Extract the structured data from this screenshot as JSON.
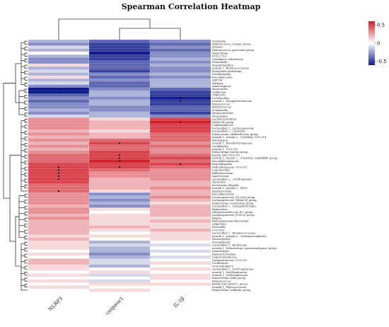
{
  "chart_data": {
    "type": "heatmap",
    "title": "Spearman Correlation Heatmap",
    "columns": [
      "NLRP3",
      "caspase1",
      "IL-1β"
    ],
    "colorbar": {
      "range": [
        -0.6,
        0.6
      ],
      "ticks": [
        {
          "label": "0.5",
          "value": 0.5
        },
        {
          "label": "0",
          "value": 0
        },
        {
          "label": "-0.5",
          "value": -0.5
        }
      ],
      "colors": {
        "low": "#0d1b8c",
        "mid": "#ffffff",
        "high": "#d11f2a"
      }
    },
    "rows": [
      {
        "name": "Tuzzerella",
        "values": [
          -0.2,
          -0.4,
          -0.3
        ]
      },
      {
        "name": "Ruminococcus_torques_group",
        "values": [
          -0.3,
          -0.5,
          -0.4
        ]
      },
      {
        "name": "HT1009",
        "values": [
          -0.1,
          -0.5,
          -0.3
        ]
      },
      {
        "name": "Ruminococcus_gauvreaui_group",
        "values": [
          -0.2,
          -0.5,
          -0.4
        ]
      },
      {
        "name": "Anaerofilum",
        "values": [
          0.0,
          -0.6,
          -0.3
        ]
      },
      {
        "name": "UCS-2-7L3",
        "values": [
          -0.2,
          -0.5,
          -0.3
        ]
      },
      {
        "name": "Candidatus_Soleaferrea",
        "values": [
          -0.3,
          -0.5,
          -0.2
        ]
      },
      {
        "name": "Monoflaoler",
        "values": [
          -0.3,
          -0.4,
          -0.3
        ]
      },
      {
        "name": "Negativibacillus",
        "values": [
          0.1,
          -0.4,
          -0.2
        ]
      },
      {
        "name": "norank_f__Ruminococcaceae",
        "values": [
          -0.2,
          -0.4,
          -0.3
        ]
      },
      {
        "name": "Erysipelatoclostridium",
        "values": [
          -0.1,
          -0.5,
          -0.3
        ]
      },
      {
        "name": "Eisenbergiella",
        "values": [
          -0.2,
          -0.3,
          -0.2
        ]
      },
      {
        "name": "Faecalibaculum",
        "values": [
          0.1,
          -0.4,
          -0.3
        ]
      },
      {
        "name": "ASF356",
        "values": [
          -0.2,
          -0.3,
          -0.2
        ]
      },
      {
        "name": "Alistipes",
        "values": [
          -0.1,
          -0.4,
          -0.2
        ]
      },
      {
        "name": "Anaerotignum",
        "values": [
          -0.3,
          -0.4,
          -0.2
        ]
      },
      {
        "name": "Bacteroides",
        "values": [
          -0.6,
          -0.3,
          -0.4
        ]
      },
      {
        "name": "Sellimonas",
        "values": [
          -0.6,
          -0.2,
          -0.5
        ]
      },
      {
        "name": "CHKCI002",
        "values": [
          -0.4,
          -0.2,
          -0.5
        ]
      },
      {
        "name": "Lactobacillus",
        "values": [
          -0.3,
          -0.3,
          -0.6
        ]
      },
      {
        "name": "norank_f__Erysipelotrichaceae",
        "values": [
          -0.4,
          -0.2,
          -0.5
        ]
      },
      {
        "name": "Enterococcus",
        "values": [
          -0.3,
          -0.2,
          -0.5
        ]
      },
      {
        "name": "Butyricicoccus",
        "values": [
          -0.3,
          -0.3,
          -0.4
        ]
      },
      {
        "name": "Fournierella",
        "values": [
          -0.2,
          -0.3,
          -0.4
        ]
      },
      {
        "name": "Parabacteroides",
        "values": [
          -0.3,
          -0.2,
          -0.5
        ]
      },
      {
        "name": "Monoglobus",
        "values": [
          -0.1,
          -0.2,
          -0.3
        ]
      },
      {
        "name": "Lachnoclostridium",
        "values": [
          0.3,
          0.1,
          0.5
        ]
      },
      {
        "name": "NK4A214_group",
        "values": [
          0.3,
          0.2,
          0.6
        ]
      },
      {
        "name": "Colidextribacter",
        "values": [
          0.3,
          0.2,
          0.5
        ]
      },
      {
        "name": "unclassified_f__Lachnospiraceae",
        "values": [
          0.3,
          0.2,
          0.5
        ]
      },
      {
        "name": "unclassified_c__Clostridia",
        "values": [
          0.2,
          0.1,
          0.5
        ]
      },
      {
        "name": "Eubacterium_oxidoreducens_group",
        "values": [
          0.3,
          0.2,
          0.4
        ]
      },
      {
        "name": "norank_f__norank_o__Clostridia_UCG-014",
        "values": [
          0.2,
          0.2,
          0.4
        ]
      },
      {
        "name": "Holdemania",
        "values": [
          0.3,
          0.4,
          0.4
        ]
      },
      {
        "name": "norank_f__Desulfovibrionaceae",
        "values": [
          0.2,
          0.5,
          0.3
        ]
      },
      {
        "name": "Oscillibacter",
        "values": [
          0.3,
          0.4,
          0.4
        ]
      },
      {
        "name": "norank_f__UCG-010",
        "values": [
          0.2,
          0.4,
          0.3
        ]
      },
      {
        "name": "Eubacterium_brachy_group",
        "values": [
          0.3,
          0.5,
          0.3
        ]
      },
      {
        "name": "Family_XIII_UCG-001",
        "values": [
          0.4,
          0.5,
          0.4
        ]
      },
      {
        "name": "norank_f__norank_o__Clostridia_vadinBB60_group",
        "values": [
          0.4,
          0.5,
          0.5
        ]
      },
      {
        "name": "Pseudoflavonifractor",
        "values": [
          0.4,
          0.6,
          0.4
        ]
      },
      {
        "name": "Marvinbryantia",
        "values": [
          0.5,
          0.5,
          0.5
        ]
      },
      {
        "name": "Defluviitaleaceae_UCG-011",
        "values": [
          0.5,
          0.5,
          0.4
        ]
      },
      {
        "name": "Coprobacillus",
        "values": [
          0.5,
          0.4,
          0.3
        ]
      },
      {
        "name": "Bifidobacterium",
        "values": [
          0.5,
          0.3,
          0.3
        ]
      },
      {
        "name": "Anaerovorax",
        "values": [
          0.5,
          0.3,
          0.3
        ]
      },
      {
        "name": "unclassified_o__Oscillospirales",
        "values": [
          0.5,
          0.2,
          0.3
        ]
      },
      {
        "name": "Tyzzerella",
        "values": [
          0.5,
          0.2,
          0.2
        ]
      },
      {
        "name": "Escherichia-Shigella",
        "values": [
          0.4,
          0.2,
          0.2
        ]
      },
      {
        "name": "norank_f__norank_o__RF39",
        "values": [
          0.4,
          0.2,
          0.3
        ]
      },
      {
        "name": "Shuttleworthia",
        "values": [
          0.4,
          0.1,
          0.2
        ]
      },
      {
        "name": "Faecalibacterium",
        "values": [
          0.3,
          -0.3,
          0.2
        ]
      },
      {
        "name": "Lachnospiraceae_NC2004_group",
        "values": [
          0.3,
          -0.2,
          0.3
        ]
      },
      {
        "name": "Lachnospiraceae_NK4A136_group",
        "values": [
          0.3,
          -0.3,
          0.2
        ]
      },
      {
        "name": "Eubacterium_ventriosum_group",
        "values": [
          0.3,
          -0.2,
          0.1
        ]
      },
      {
        "name": "unclassified_o__Erysipelotrichales",
        "values": [
          0.2,
          -0.3,
          0.2
        ]
      },
      {
        "name": "Romboutsia",
        "values": [
          0.3,
          0.1,
          0.2
        ]
      },
      {
        "name": "Christensenellaceae_R-7_group",
        "values": [
          0.3,
          0.0,
          0.2
        ]
      },
      {
        "name": "Lachnospiraceae_FCS020_group",
        "values": [
          0.2,
          0.1,
          0.2
        ]
      },
      {
        "name": "Blautia",
        "values": [
          0.3,
          0.1,
          0.1
        ]
      },
      {
        "name": "Hydrogenoanaerobacterium",
        "values": [
          0.2,
          0.1,
          0.2
        ]
      },
      {
        "name": "CHKCI001",
        "values": [
          0.2,
          0.1,
          0.1
        ]
      },
      {
        "name": "Prevotella",
        "values": [
          0.2,
          0.2,
          0.1
        ]
      },
      {
        "name": "UCG-005",
        "values": [
          0.2,
          0.1,
          0.2
        ]
      },
      {
        "name": "unclassified_f__Ruminococcaceae",
        "values": [
          0.2,
          0.0,
          0.1
        ]
      },
      {
        "name": "norank_f__norank_o__Gastranaerophilales",
        "values": [
          0.1,
          0.1,
          0.1
        ]
      },
      {
        "name": "Parasutterella",
        "values": [
          0.2,
          0.0,
          0.1
        ]
      },
      {
        "name": "Flavonifractor",
        "values": [
          0.1,
          -0.2,
          0.0
        ]
      },
      {
        "name": "unclassified_f__Bacillaceae",
        "values": [
          0.1,
          -0.1,
          -0.1
        ]
      },
      {
        "name": "norank_f__Eubacterium_coprostanoligenes_group",
        "values": [
          0.1,
          -0.2,
          0.0
        ]
      },
      {
        "name": "Anaerostipes",
        "values": [
          0.0,
          -0.2,
          -0.1
        ]
      },
      {
        "name": "Ruminiclostridium",
        "values": [
          0.1,
          -0.3,
          0.0
        ]
      },
      {
        "name": "Caproiciproducens",
        "values": [
          0.0,
          -0.2,
          -0.1
        ]
      },
      {
        "name": "Lachnospiraceae_UCG-010",
        "values": [
          0.2,
          -0.1,
          0.0
        ]
      },
      {
        "name": "Oscillibacter",
        "values": [
          0.2,
          -0.1,
          0.1
        ]
      },
      {
        "name": "GCA-900066575",
        "values": [
          0.1,
          -0.2,
          0.0
        ]
      },
      {
        "name": "unclassified_f__Oscillospiraceae",
        "values": [
          0.1,
          0.0,
          0.1
        ]
      },
      {
        "name": "norank_f__Oscillospiraceae",
        "values": [
          0.0,
          0.1,
          0.0
        ]
      },
      {
        "name": "norank_f__Lachnospiraceae",
        "values": [
          0.1,
          -0.1,
          0.1
        ]
      },
      {
        "name": "Eubacterium_hallii_group",
        "values": [
          0.0,
          0.0,
          0.1
        ]
      },
      {
        "name": "Ruminococcus",
        "values": [
          0.1,
          -0.1,
          0.0
        ]
      },
      {
        "name": "Family_XIII_AD3011_group",
        "values": [
          0.0,
          0.1,
          0.1
        ]
      },
      {
        "name": "norank_f__Peptococcaceae",
        "values": [
          0.1,
          0.0,
          0.0
        ]
      },
      {
        "name": "Eubacterium_nodatum_group",
        "values": [
          0.0,
          0.1,
          0.0
        ]
      }
    ],
    "significance_marks": [
      {
        "row": 16,
        "col": 0
      },
      {
        "row": 19,
        "col": 2
      },
      {
        "row": 20,
        "col": 2
      },
      {
        "row": 27,
        "col": 2
      },
      {
        "row": 34,
        "col": 1
      },
      {
        "row": 38,
        "col": 1
      },
      {
        "row": 39,
        "col": 1
      },
      {
        "row": 40,
        "col": 1
      },
      {
        "row": 41,
        "col": 2
      },
      {
        "row": 42,
        "col": 0
      },
      {
        "row": 42,
        "col": 1
      },
      {
        "row": 43,
        "col": 0
      },
      {
        "row": 44,
        "col": 0
      },
      {
        "row": 45,
        "col": 0
      },
      {
        "row": 46,
        "col": 0
      },
      {
        "row": 50,
        "col": 0
      }
    ]
  }
}
